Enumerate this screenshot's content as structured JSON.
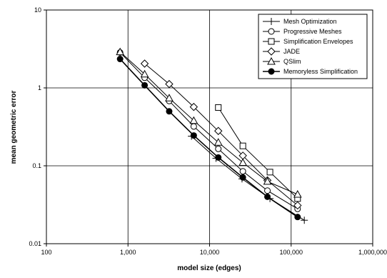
{
  "chart_data": {
    "type": "line",
    "xscale": "log",
    "yscale": "log",
    "xlabel": "model size (edges)",
    "ylabel": "mean geometric error",
    "xlim": [
      100,
      1000000
    ],
    "ylim": [
      0.01,
      10
    ],
    "xticks": [
      {
        "value": 100,
        "label": "100"
      },
      {
        "value": 1000,
        "label": "1,000"
      },
      {
        "value": 10000,
        "label": "10,000"
      },
      {
        "value": 100000,
        "label": "100,000"
      },
      {
        "value": 1000000,
        "label": "1,000,000"
      }
    ],
    "yticks": [
      {
        "value": 0.01,
        "label": "0.01"
      },
      {
        "value": 0.1,
        "label": "0.1"
      },
      {
        "value": 1,
        "label": "1"
      },
      {
        "value": 10,
        "label": "10"
      }
    ],
    "grid": true,
    "legend_position": "top-right",
    "series": [
      {
        "name": "Mesh Optimization",
        "marker": "plus",
        "x": [
          6000,
          12000,
          25000,
          55000,
          145000
        ],
        "y": [
          0.24,
          0.125,
          0.068,
          0.038,
          0.02
        ]
      },
      {
        "name": "Progressive Meshes",
        "marker": "circle-open",
        "x": [
          800,
          1600,
          3200,
          6400,
          12800,
          25600,
          51200,
          120000
        ],
        "y": [
          2.85,
          1.35,
          0.68,
          0.32,
          0.165,
          0.085,
          0.048,
          0.028
        ]
      },
      {
        "name": "Simplification Envelopes",
        "marker": "square-open",
        "x": [
          12800,
          25600,
          55000,
          120000
        ],
        "y": [
          0.56,
          0.18,
          0.083,
          0.038
        ]
      },
      {
        "name": "JADE",
        "marker": "diamond-open",
        "x": [
          1600,
          3200,
          6400,
          12800,
          25600,
          51200,
          120000
        ],
        "y": [
          2.05,
          1.12,
          0.57,
          0.28,
          0.135,
          0.065,
          0.031
        ]
      },
      {
        "name": "QSlim",
        "marker": "triangle-open",
        "x": [
          800,
          1600,
          3200,
          6400,
          12800,
          25600,
          51200,
          120000
        ],
        "y": [
          2.9,
          1.5,
          0.74,
          0.38,
          0.2,
          0.11,
          0.063,
          0.043
        ]
      },
      {
        "name": "Memoryless Simplification",
        "marker": "circle-filled",
        "x": [
          800,
          1600,
          3200,
          6400,
          12800,
          25600,
          51200,
          120000
        ],
        "y": [
          2.35,
          1.08,
          0.5,
          0.245,
          0.128,
          0.071,
          0.04,
          0.022
        ]
      }
    ]
  }
}
